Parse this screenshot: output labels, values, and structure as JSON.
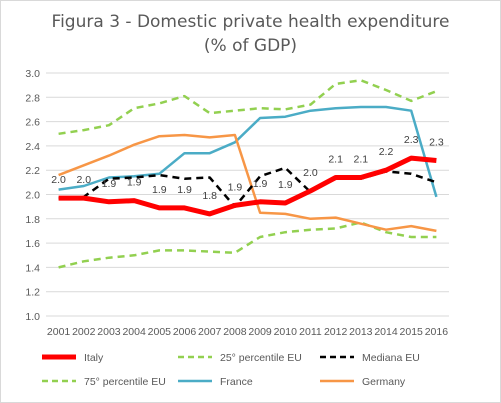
{
  "chart_data": {
    "type": "line",
    "title": "Figura 3 - Domestic private health expenditure",
    "subtitle": "(% of GDP)",
    "x": [
      "2001",
      "2002",
      "2003",
      "2004",
      "2005",
      "2006",
      "2007",
      "2008",
      "2009",
      "2010",
      "2011",
      "2012",
      "2013",
      "2014",
      "2015",
      "2016"
    ],
    "ylim": [
      1.0,
      3.0
    ],
    "yticks": [
      "1.0",
      "1.2",
      "1.4",
      "1.6",
      "1.8",
      "2.0",
      "2.2",
      "2.4",
      "2.6",
      "2.8",
      "3.0"
    ],
    "grid": true,
    "legend_position": "bottom",
    "series": [
      {
        "name": "Italy",
        "color": "#ff0000",
        "style": "solid-thick",
        "values": [
          1.97,
          1.97,
          1.94,
          1.95,
          1.89,
          1.89,
          1.84,
          1.91,
          1.94,
          1.93,
          2.03,
          2.14,
          2.14,
          2.2,
          2.3,
          2.28
        ],
        "labels": [
          "2.0",
          "2.0",
          "1.9",
          "1.9",
          "1.9",
          "1.9",
          "1.8",
          "1.9",
          "1.9",
          "1.9",
          "2.0",
          "2.1",
          "2.1",
          "2.2",
          "2.3",
          "2.3"
        ]
      },
      {
        "name": "25° percentile EU",
        "color": "#92d050",
        "style": "dashed",
        "values": [
          1.4,
          1.45,
          1.48,
          1.5,
          1.54,
          1.54,
          1.53,
          1.52,
          1.65,
          1.69,
          1.71,
          1.72,
          1.77,
          1.69,
          1.65,
          1.65
        ]
      },
      {
        "name": "Mediana EU",
        "color": "#000000",
        "style": "dashed",
        "values": [
          1.97,
          1.98,
          2.13,
          2.14,
          2.16,
          2.13,
          2.14,
          1.9,
          2.15,
          2.22,
          2.02,
          2.14,
          2.13,
          2.19,
          2.17,
          2.1
        ]
      },
      {
        "name": "75° percentile EU",
        "color": "#92d050",
        "style": "dashed",
        "values": [
          2.5,
          2.53,
          2.57,
          2.71,
          2.75,
          2.81,
          2.67,
          2.69,
          2.71,
          2.7,
          2.74,
          2.91,
          2.94,
          2.86,
          2.77,
          2.85
        ]
      },
      {
        "name": "France",
        "color": "#4bacc6",
        "style": "solid",
        "values": [
          2.04,
          2.07,
          2.14,
          2.15,
          2.17,
          2.34,
          2.34,
          2.43,
          2.63,
          2.64,
          2.69,
          2.71,
          2.72,
          2.72,
          2.69,
          1.98
        ]
      },
      {
        "name": "Germany",
        "color": "#f79646",
        "style": "solid",
        "values": [
          2.16,
          2.24,
          2.32,
          2.41,
          2.48,
          2.49,
          2.47,
          2.49,
          1.85,
          1.84,
          1.8,
          1.81,
          1.76,
          1.71,
          1.74,
          1.7
        ]
      }
    ]
  }
}
